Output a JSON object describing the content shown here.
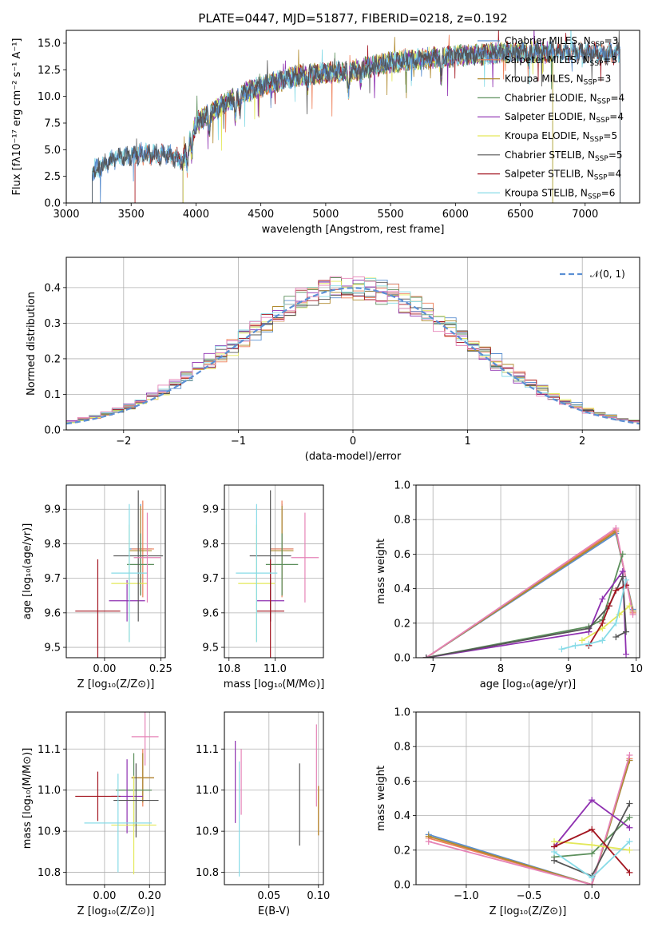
{
  "title": "PLATE=0447, MJD=51877, FIBERID=0218, z=0.192",
  "colors": {
    "Chabrier MILES": "#5b8fcf",
    "Salpeter MILES": "#ee7f58",
    "Kroupa MILES": "#b08a2e",
    "Chabrier ELODIE": "#5c8f5c",
    "Salpeter ELODIE": "#8e2fb0",
    "Kroupa ELODIE": "#e3e85a",
    "Chabrier STELIB": "#555555",
    "Salpeter STELIB": "#a31621",
    "Kroupa STELIB": "#87dbe7",
    "Pink": "#e583b7",
    "Normal": "#5b8fd4"
  },
  "chart_data": [
    {
      "type": "line",
      "id": "spectrum",
      "title": "PLATE=0447, MJD=51877, FIBERID=0218, z=0.192",
      "xlabel": "wavelength [Angstrom, rest frame]",
      "ylabel": "Flux [fλ10⁻¹⁷ erg cm⁻² s⁻¹ A⁻¹]",
      "xlim": [
        3000,
        7420
      ],
      "ylim": [
        0,
        16.2
      ],
      "xticks": [
        3000,
        3500,
        4000,
        4500,
        5000,
        5500,
        6000,
        6500,
        7000
      ],
      "yticks": [
        0.0,
        2.5,
        5.0,
        7.5,
        10.0,
        12.5,
        15.0
      ],
      "ytick_labels": [
        "0.0",
        "2.5",
        "5.0",
        "7.5",
        "10.0",
        "12.5",
        "15.0"
      ],
      "legend": [
        "Chabrier MILES, N_SSP=3",
        "Salpeter MILES, N_SSP=3",
        "Kroupa MILES, N_SSP=3",
        "Chabrier ELODIE, N_SSP=4",
        "Salpeter ELODIE, N_SSP=4",
        "Kroupa ELODIE, N_SSP=5",
        "Chabrier STELIB, N_SSP=5",
        "Salpeter STELIB, N_SSP=4",
        "Kroupa STELIB, N_SSP=6"
      ],
      "legend_plain": [
        "Chabrier MILES, N",
        "Salpeter MILES, N",
        "Kroupa MILES, N",
        "Chabrier ELODIE, N",
        "Salpeter ELODIE, N",
        "Kroupa ELODIE, N",
        "Chabrier STELIB, N",
        "Salpeter STELIB, N",
        "Kroupa STELIB, N"
      ],
      "legend_n": [
        "=3",
        "=3",
        "=3",
        "=4",
        "=4",
        "=5",
        "=5",
        "=4",
        "=6"
      ],
      "legend_sub": "SSP",
      "legend_placement": "upper-right",
      "series_ranges": [
        [
          3200,
          7270
        ],
        [
          3530,
          7270
        ],
        [
          3900,
          6750
        ],
        [
          3900,
          6750
        ],
        [
          3900,
          6750
        ],
        [
          3900,
          6750
        ],
        [
          3200,
          7270
        ],
        [
          3530,
          7270
        ],
        [
          3200,
          7270
        ]
      ],
      "continuum": [
        [
          3200,
          3.0
        ],
        [
          3400,
          4.3
        ],
        [
          3600,
          4.6
        ],
        [
          3800,
          4.5
        ],
        [
          3900,
          4.0
        ],
        [
          4000,
          7.5
        ],
        [
          4200,
          9.2
        ],
        [
          4400,
          10.5
        ],
        [
          4600,
          11.3
        ],
        [
          4800,
          12.0
        ],
        [
          5000,
          12.2
        ],
        [
          5200,
          12.4
        ],
        [
          5500,
          13.2
        ],
        [
          5800,
          13.6
        ],
        [
          6000,
          13.8
        ],
        [
          6500,
          14.2
        ],
        [
          7000,
          14.1
        ],
        [
          7270,
          14.0
        ]
      ],
      "absorption": [
        [
          3933,
          1.8
        ],
        [
          3968,
          1.8
        ],
        [
          4102,
          1.5
        ],
        [
          4304,
          2.0
        ],
        [
          4340,
          1.2
        ],
        [
          4861,
          1.0
        ],
        [
          5175,
          2.0
        ],
        [
          5270,
          1.0
        ],
        [
          5890,
          2.0
        ],
        [
          6563,
          0.8
        ]
      ]
    },
    {
      "type": "line",
      "id": "residuals",
      "xlabel": "(data-model)/error",
      "ylabel": "Normed distribution",
      "xlim": [
        -2.5,
        2.5
      ],
      "ylim": [
        0,
        0.485
      ],
      "xticks": [
        -2,
        -1,
        0,
        1,
        2
      ],
      "xtick_labels": [
        "−2",
        "−1",
        "0",
        "1",
        "2"
      ],
      "yticks": [
        0.0,
        0.1,
        0.2,
        0.3,
        0.4
      ],
      "ytick_labels": [
        "0.0",
        "0.1",
        "0.2",
        "0.3",
        "0.4"
      ],
      "legend": [
        "𝒩(0, 1)"
      ],
      "legend_placement": "upper-right",
      "bin_width": 0.1,
      "grid": true
    },
    {
      "type": "scatter",
      "id": "age-vs-Z",
      "xlabel": "Z [log₁₀(Z/Z⊙)]",
      "ylabel": "age  [log₁₀(age/yr)]",
      "xlim": [
        -0.17,
        0.27
      ],
      "ylim": [
        9.47,
        9.97
      ],
      "xticks": [
        0.0,
        0.25
      ],
      "xtick_labels": [
        "0.00",
        "0.25"
      ],
      "yticks": [
        9.5,
        9.6,
        9.7,
        9.8,
        9.9
      ],
      "ytick_labels": [
        "9.5",
        "9.6",
        "9.7",
        "9.8",
        "9.9"
      ],
      "points": [
        {
          "c": "Chabrier MILES",
          "x": 0.16,
          "xerr": 0.05,
          "y": 9.785,
          "yerr": 0.13
        },
        {
          "c": "Salpeter MILES",
          "x": 0.17,
          "xerr": 0.05,
          "y": 9.785,
          "yerr": 0.14
        },
        {
          "c": "Kroupa MILES",
          "x": 0.16,
          "xerr": 0.05,
          "y": 9.78,
          "yerr": 0.13
        },
        {
          "c": "Chabrier ELODIE",
          "x": 0.16,
          "xerr": 0.06,
          "y": 9.74,
          "yerr": 0.09
        },
        {
          "c": "Salpeter ELODIE",
          "x": 0.1,
          "xerr": 0.08,
          "y": 9.635,
          "yerr": 0.06
        },
        {
          "c": "Kroupa ELODIE",
          "x": 0.11,
          "xerr": 0.08,
          "y": 9.685,
          "yerr": 0.17
        },
        {
          "c": "Chabrier STELIB",
          "x": 0.15,
          "xerr": 0.11,
          "y": 9.765,
          "yerr": 0.19
        },
        {
          "c": "Salpeter STELIB",
          "x": -0.03,
          "xerr": 0.1,
          "y": 9.605,
          "yerr": 0.15
        },
        {
          "c": "Kroupa STELIB",
          "x": 0.11,
          "xerr": 0.08,
          "y": 9.715,
          "yerr": 0.2
        },
        {
          "c": "Pink",
          "x": 0.19,
          "xerr": 0.06,
          "y": 9.76,
          "yerr": 0.13
        }
      ]
    },
    {
      "type": "scatter",
      "id": "age-vs-mass",
      "xlabel": "mass [log₁₀(M/M⊙)]",
      "ylabel": "",
      "xlim": [
        10.78,
        11.21
      ],
      "ylim": [
        9.47,
        9.97
      ],
      "xticks": [
        10.8,
        11.0
      ],
      "xtick_labels": [
        "10.8",
        "11.0"
      ],
      "yticks": [
        9.5,
        9.6,
        9.7,
        9.8,
        9.9
      ],
      "ytick_labels": [
        "9.5",
        "9.6",
        "9.7",
        "9.8",
        "9.9"
      ],
      "points": [
        {
          "c": "Chabrier MILES",
          "x": 11.03,
          "xerr": 0.05,
          "y": 9.785,
          "yerr": 0.13
        },
        {
          "c": "Salpeter MILES",
          "x": 11.03,
          "xerr": 0.05,
          "y": 9.785,
          "yerr": 0.14
        },
        {
          "c": "Kroupa MILES",
          "x": 11.03,
          "xerr": 0.05,
          "y": 9.78,
          "yerr": 0.13
        },
        {
          "c": "Chabrier ELODIE",
          "x": 11.03,
          "xerr": 0.07,
          "y": 9.74,
          "yerr": 0.09
        },
        {
          "c": "Salpeter ELODIE",
          "x": 10.98,
          "xerr": 0.06,
          "y": 9.635,
          "yerr": 0.06
        },
        {
          "c": "Kroupa ELODIE",
          "x": 10.92,
          "xerr": 0.08,
          "y": 9.685,
          "yerr": 0.17
        },
        {
          "c": "Chabrier STELIB",
          "x": 10.98,
          "xerr": 0.09,
          "y": 9.765,
          "yerr": 0.19
        },
        {
          "c": "Salpeter STELIB",
          "x": 10.98,
          "xerr": 0.06,
          "y": 9.605,
          "yerr": 0.15
        },
        {
          "c": "Kroupa STELIB",
          "x": 10.92,
          "xerr": 0.09,
          "y": 9.715,
          "yerr": 0.2
        },
        {
          "c": "Pink",
          "x": 11.13,
          "xerr": 0.06,
          "y": 9.76,
          "yerr": 0.13
        }
      ]
    },
    {
      "type": "line",
      "id": "weight-vs-age",
      "xlabel": "age  [log₁₀(age/yr)]",
      "ylabel": "mass weight",
      "xlim": [
        6.75,
        10.05
      ],
      "ylim": [
        0,
        1.0
      ],
      "xticks": [
        7,
        8,
        9,
        10
      ],
      "xtick_labels": [
        "7",
        "8",
        "9",
        "10"
      ],
      "yticks": [
        0.0,
        0.2,
        0.4,
        0.6,
        0.8,
        1.0
      ],
      "ytick_labels": [
        "0.0",
        "0.2",
        "0.4",
        "0.6",
        "0.8",
        "1.0"
      ],
      "grid": true,
      "series": [
        {
          "c": "Chabrier MILES",
          "x": [
            6.9,
            9.7,
            9.95
          ],
          "y": [
            0.0,
            0.72,
            0.28
          ]
        },
        {
          "c": "Salpeter MILES",
          "x": [
            6.9,
            9.7,
            9.95
          ],
          "y": [
            0.0,
            0.74,
            0.26
          ]
        },
        {
          "c": "Kroupa MILES",
          "x": [
            6.9,
            9.7,
            9.95
          ],
          "y": [
            0.0,
            0.73,
            0.27
          ]
        },
        {
          "c": "Pink",
          "x": [
            6.9,
            9.7,
            9.95
          ],
          "y": [
            0.0,
            0.75,
            0.25
          ]
        },
        {
          "c": "Chabrier ELODIE",
          "x": [
            6.9,
            9.3,
            9.5,
            9.8
          ],
          "y": [
            0.0,
            0.18,
            0.22,
            0.6
          ]
        },
        {
          "c": "Salpeter ELODIE",
          "x": [
            6.9,
            9.3,
            9.5,
            9.8,
            9.85
          ],
          "y": [
            0.0,
            0.15,
            0.34,
            0.5,
            0.02
          ]
        },
        {
          "c": "Kroupa ELODIE",
          "x": [
            9.2,
            9.5,
            9.75,
            9.9
          ],
          "y": [
            0.1,
            0.17,
            0.25,
            0.3
          ]
        },
        {
          "c": "Chabrier STELIB",
          "x": [
            6.9,
            9.3,
            9.6,
            9.8,
            9.85,
            9.7
          ],
          "y": [
            0.0,
            0.17,
            0.3,
            0.47,
            0.15,
            0.12
          ]
        },
        {
          "c": "Salpeter STELIB",
          "x": [
            9.3,
            9.5,
            9.6,
            9.7,
            9.85
          ],
          "y": [
            0.07,
            0.2,
            0.3,
            0.39,
            0.42
          ]
        },
        {
          "c": "Kroupa STELIB",
          "x": [
            8.9,
            9.1,
            9.3,
            9.5,
            9.7,
            9.85
          ],
          "y": [
            0.05,
            0.07,
            0.08,
            0.1,
            0.2,
            0.45
          ]
        }
      ]
    },
    {
      "type": "scatter",
      "id": "mass-vs-Z",
      "xlabel": "Z [log₁₀(Z/Z⊙)]",
      "ylabel": "mass [log₁₀(M/M⊙)]",
      "xlim": [
        -0.17,
        0.27
      ],
      "ylim": [
        10.77,
        11.19
      ],
      "xticks": [
        0.0,
        0.2
      ],
      "xtick_labels": [
        "0.00",
        "0.20"
      ],
      "yticks": [
        10.8,
        10.9,
        11.0,
        11.1
      ],
      "ytick_labels": [
        "10.8",
        "10.9",
        "11.0",
        "11.1"
      ],
      "points": [
        {
          "c": "Chabrier MILES",
          "x": 0.17,
          "xerr": 0.05,
          "y": 11.03,
          "yerr": 0.06
        },
        {
          "c": "Salpeter MILES",
          "x": 0.17,
          "xerr": 0.05,
          "y": 11.03,
          "yerr": 0.07
        },
        {
          "c": "Kroupa MILES",
          "x": 0.17,
          "xerr": 0.05,
          "y": 11.03,
          "yerr": 0.06
        },
        {
          "c": "Chabrier ELODIE",
          "x": 0.13,
          "xerr": 0.08,
          "y": 11.0,
          "yerr": 0.09
        },
        {
          "c": "Salpeter ELODIE",
          "x": 0.1,
          "xerr": 0.07,
          "y": 10.985,
          "yerr": 0.09
        },
        {
          "c": "Kroupa ELODIE",
          "x": 0.13,
          "xerr": 0.1,
          "y": 10.915,
          "yerr": 0.12
        },
        {
          "c": "Chabrier STELIB",
          "x": 0.14,
          "xerr": 0.1,
          "y": 10.975,
          "yerr": 0.09
        },
        {
          "c": "Salpeter STELIB",
          "x": -0.03,
          "xerr": 0.1,
          "y": 10.985,
          "yerr": 0.06
        },
        {
          "c": "Kroupa STELIB",
          "x": 0.06,
          "xerr": 0.15,
          "y": 10.92,
          "yerr": 0.12
        },
        {
          "c": "Pink",
          "x": 0.18,
          "xerr": 0.06,
          "y": 11.13,
          "yerr": 0.07
        }
      ]
    },
    {
      "type": "scatter",
      "id": "mass-vs-ebv",
      "xlabel": "E(B-V)",
      "ylabel": "",
      "xlim": [
        0.005,
        0.105
      ],
      "ylim": [
        10.77,
        11.19
      ],
      "xticks": [
        0.05,
        0.1
      ],
      "xtick_labels": [
        "0.05",
        "0.10"
      ],
      "yticks": [
        10.8,
        10.9,
        11.0,
        11.1
      ],
      "ytick_labels": [
        "10.8",
        "10.9",
        "11.0",
        "11.1"
      ],
      "points": [
        {
          "c": "Salpeter ELODIE",
          "x": 0.016,
          "xerr": 0,
          "y": 11.02,
          "yerr": 0.1
        },
        {
          "c": "Kroupa STELIB",
          "x": 0.02,
          "xerr": 0,
          "y": 10.93,
          "yerr": 0.14
        },
        {
          "c": "Pink",
          "x": 0.022,
          "xerr": 0,
          "y": 11.02,
          "yerr": 0.08
        },
        {
          "c": "Chabrier STELIB",
          "x": 0.081,
          "xerr": 0,
          "y": 10.965,
          "yerr": 0.1
        },
        {
          "c": "Pink",
          "x": 0.098,
          "xerr": 0,
          "y": 11.06,
          "yerr": 0.1
        },
        {
          "c": "Salpeter MILES",
          "x": 0.1,
          "xerr": 0,
          "y": 10.95,
          "yerr": 0.06
        },
        {
          "c": "Kroupa MILES",
          "x": 0.1,
          "xerr": 0,
          "y": 10.95,
          "yerr": 0.06
        }
      ]
    },
    {
      "type": "line",
      "id": "weight-vs-Z",
      "xlabel": "Z [log₁₀(Z/Z⊙)]",
      "ylabel": "mass weight",
      "xlim": [
        -1.4,
        0.38
      ],
      "ylim": [
        0,
        1.0
      ],
      "xticks": [
        -1.0,
        -0.5,
        0.0
      ],
      "xtick_labels": [
        "−1.0",
        "−0.5",
        "0.0"
      ],
      "yticks": [
        0.0,
        0.2,
        0.4,
        0.6,
        0.8,
        1.0
      ],
      "ytick_labels": [
        "0.0",
        "0.2",
        "0.4",
        "0.6",
        "0.8",
        "1.0"
      ],
      "grid": true,
      "series": [
        {
          "c": "Chabrier MILES",
          "x": [
            -1.3,
            0.0,
            0.3
          ],
          "y": [
            0.29,
            0.0,
            0.72
          ]
        },
        {
          "c": "Salpeter MILES",
          "x": [
            -1.3,
            0.0,
            0.3
          ],
          "y": [
            0.27,
            0.0,
            0.73
          ]
        },
        {
          "c": "Kroupa MILES",
          "x": [
            -1.3,
            0.0,
            0.3
          ],
          "y": [
            0.28,
            0.0,
            0.72
          ]
        },
        {
          "c": "Pink",
          "x": [
            -1.3,
            0.0,
            0.3
          ],
          "y": [
            0.25,
            0.0,
            0.75
          ]
        },
        {
          "c": "Chabrier ELODIE",
          "x": [
            -0.3,
            0.0,
            0.3
          ],
          "y": [
            0.16,
            0.18,
            0.39
          ]
        },
        {
          "c": "Salpeter ELODIE",
          "x": [
            -0.3,
            0.0,
            0.3
          ],
          "y": [
            0.22,
            0.49,
            0.33
          ]
        },
        {
          "c": "Kroupa ELODIE",
          "x": [
            -0.3,
            0.0,
            0.3
          ],
          "y": [
            0.25,
            0.23,
            0.2
          ]
        },
        {
          "c": "Chabrier STELIB",
          "x": [
            -0.3,
            0.0,
            0.3
          ],
          "y": [
            0.14,
            0.05,
            0.47
          ]
        },
        {
          "c": "Salpeter STELIB",
          "x": [
            -0.3,
            0.0,
            0.3
          ],
          "y": [
            0.22,
            0.32,
            0.07
          ]
        },
        {
          "c": "Kroupa STELIB",
          "x": [
            -0.3,
            0.0,
            0.3
          ],
          "y": [
            0.19,
            0.04,
            0.25
          ]
        }
      ]
    }
  ]
}
